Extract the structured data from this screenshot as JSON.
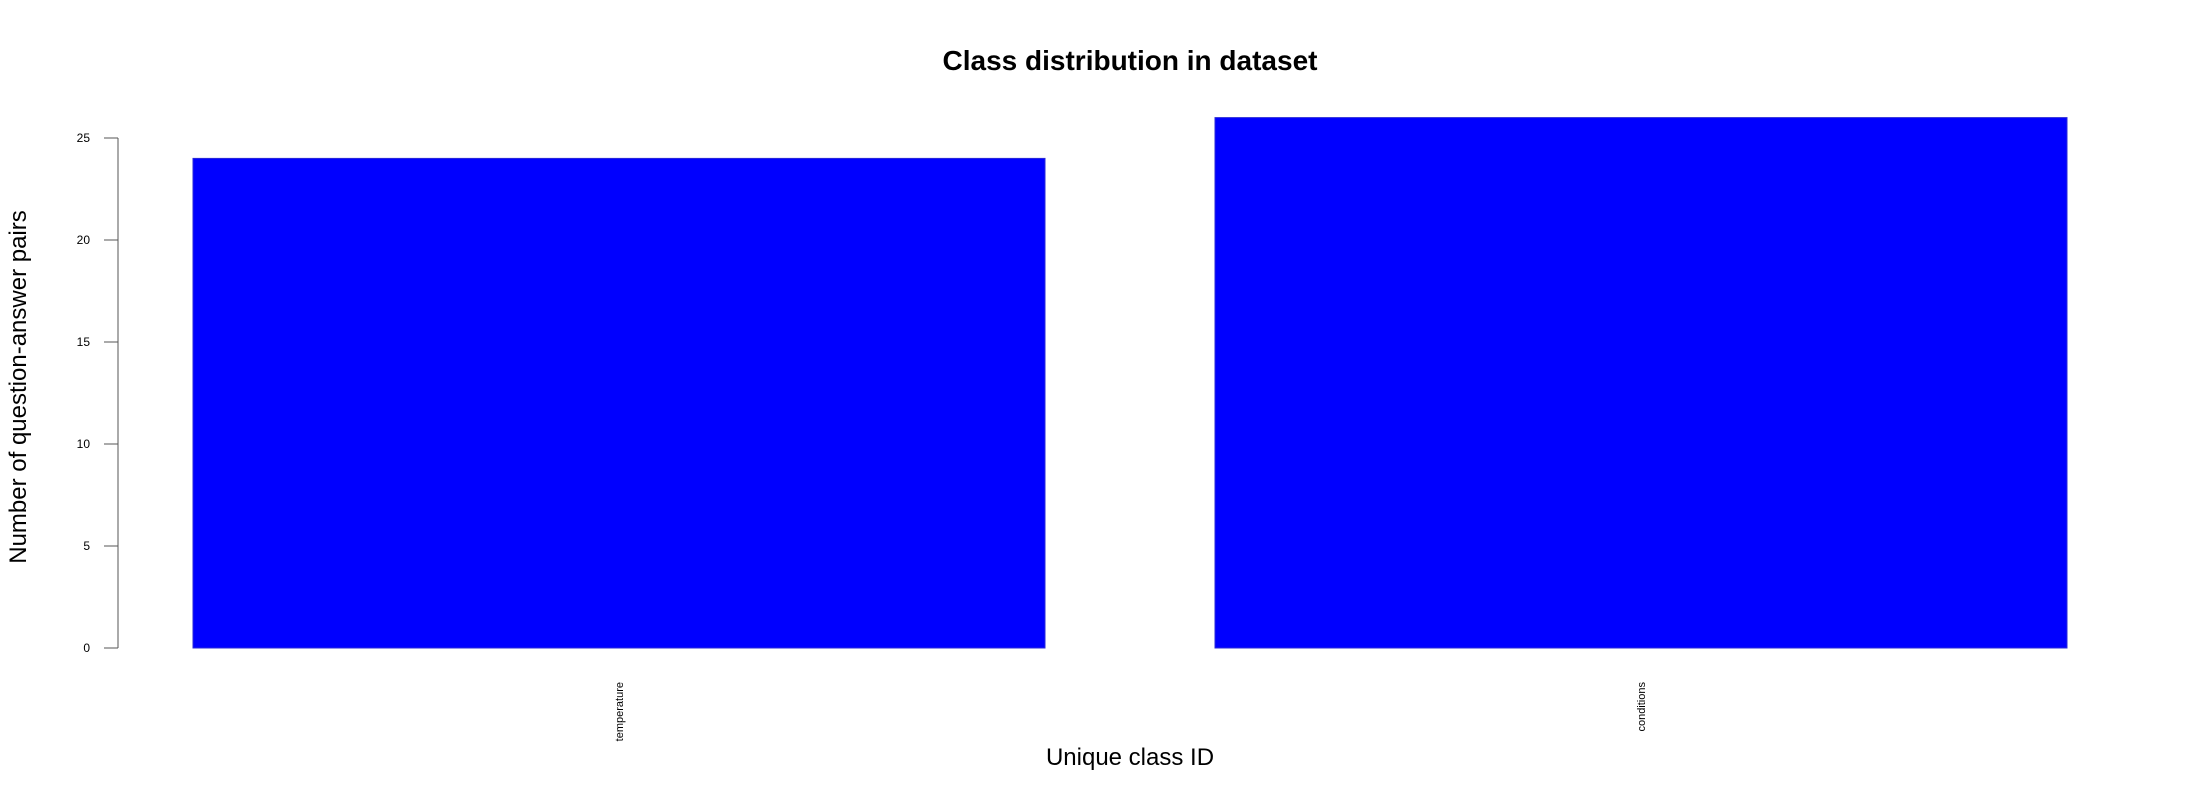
{
  "chart_data": {
    "type": "bar",
    "title": "Class distribution in dataset",
    "xlabel": "Unique class ID",
    "ylabel": "Number of question-answer pairs",
    "categories": [
      "temperature",
      "conditions"
    ],
    "values": [
      24,
      26
    ],
    "ylim": [
      0,
      25
    ],
    "yticks": [
      0,
      5,
      10,
      15,
      20,
      25
    ],
    "bar_color": "#0000ff",
    "grid": false,
    "legend": "none"
  }
}
